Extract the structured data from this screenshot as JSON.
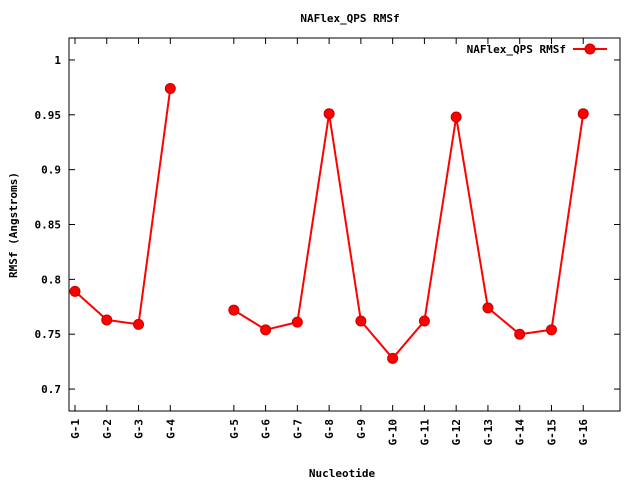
{
  "chart_data": {
    "type": "line",
    "title": "NAFlex_QPS RMSf",
    "xlabel": "Nucleotide",
    "ylabel": "RMSf (Angstroms)",
    "ylim": [
      0.68,
      1.02
    ],
    "yticks": [
      0.7,
      0.75,
      0.8,
      0.85,
      0.9,
      0.95,
      1
    ],
    "ytick_labels": [
      "0.7",
      "0.75",
      "0.8",
      "0.85",
      "0.9",
      "0.95",
      "1"
    ],
    "xlim": [
      0,
      17
    ],
    "grid": false,
    "legend_position": "top-right",
    "series": [
      {
        "name": "NAFlex_QPS RMSf",
        "color": "#ff0000",
        "marker": "circle",
        "points": [
          {
            "label": "G-1",
            "x": 0,
            "y": 0.789
          },
          {
            "label": "G-2",
            "x": 1,
            "y": 0.763
          },
          {
            "label": "G-3",
            "x": 2,
            "y": 0.759
          },
          {
            "label": "G-4",
            "x": 3,
            "y": 0.974
          },
          {
            "label": "G-5",
            "x": 5,
            "y": 0.772
          },
          {
            "label": "G-6",
            "x": 6,
            "y": 0.754
          },
          {
            "label": "G-7",
            "x": 7,
            "y": 0.761
          },
          {
            "label": "G-8",
            "x": 8,
            "y": 0.951
          },
          {
            "label": "G-9",
            "x": 9,
            "y": 0.762
          },
          {
            "label": "G-10",
            "x": 10,
            "y": 0.728
          },
          {
            "label": "G-11",
            "x": 11,
            "y": 0.762
          },
          {
            "label": "G-12",
            "x": 12,
            "y": 0.948
          },
          {
            "label": "G-13",
            "x": 13,
            "y": 0.774
          },
          {
            "label": "G-14",
            "x": 14,
            "y": 0.75
          },
          {
            "label": "G-15",
            "x": 15,
            "y": 0.754
          },
          {
            "label": "G-16",
            "x": 16,
            "y": 0.951
          }
        ],
        "segments": [
          [
            0,
            3
          ],
          [
            4,
            15
          ]
        ]
      }
    ]
  }
}
